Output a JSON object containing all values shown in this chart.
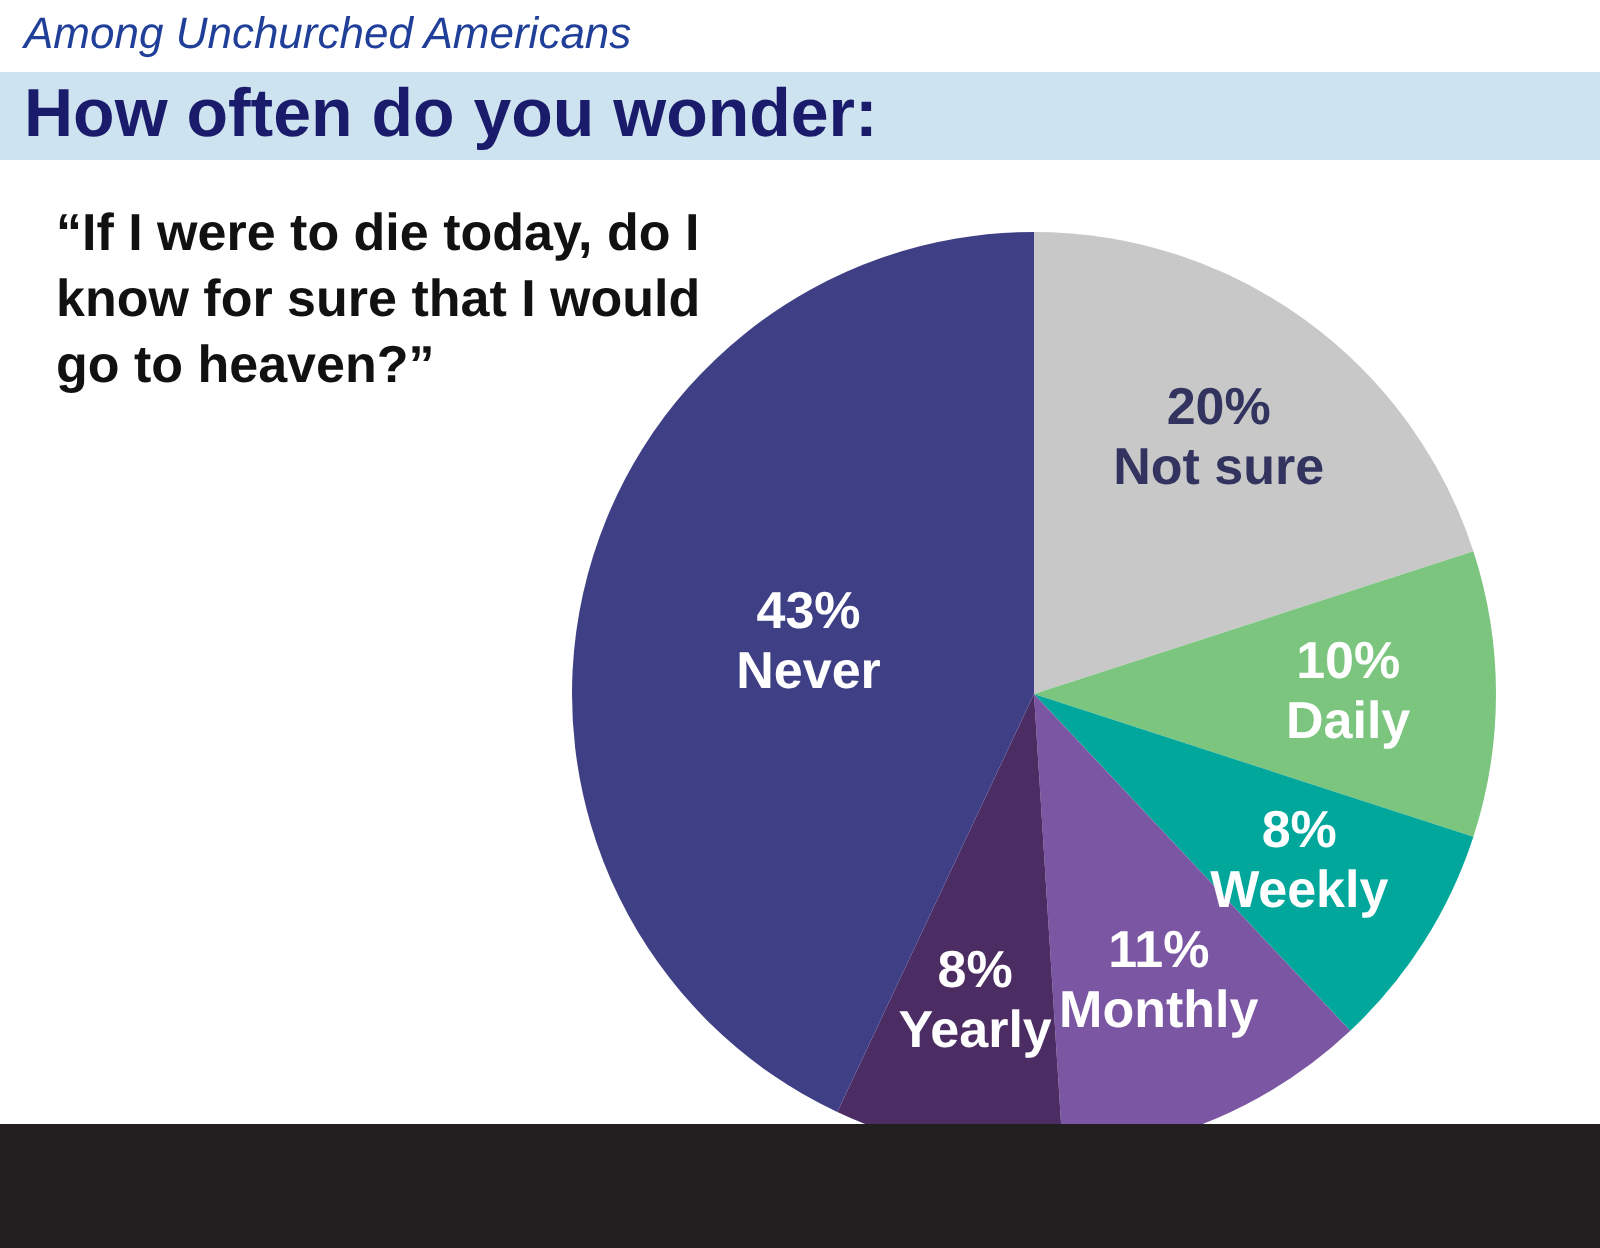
{
  "chart_data": {
    "type": "pie",
    "title": "How often do you wonder:",
    "subtitle": "Among Unchurched Americans",
    "annotations": [
      "“If I were to die today, do I know for sure that I would go to heaven?”"
    ],
    "categories": [
      "Not sure",
      "Daily",
      "Weekly",
      "Monthly",
      "Yearly",
      "Never"
    ],
    "values": [
      20,
      10,
      8,
      11,
      8,
      43
    ],
    "value_labels": [
      "20%",
      "10%",
      "8%",
      "11%",
      "8%",
      "43%"
    ],
    "colors": [
      "#c8c8c8",
      "#7cc57f",
      "#00a79a",
      "#7b56a2",
      "#4b2c63",
      "#3f3f86"
    ]
  }
}
